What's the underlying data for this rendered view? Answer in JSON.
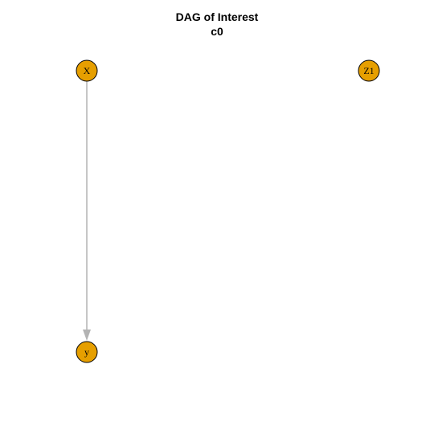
{
  "title": "DAG of Interest",
  "subtitle": "c0",
  "colors": {
    "node_fill": "#E69F00",
    "node_stroke": "#000000",
    "edge": "#B3B3B3",
    "label": "#000000"
  },
  "nodes": [
    {
      "id": "X",
      "label": "X"
    },
    {
      "id": "Z1",
      "label": "Z1"
    },
    {
      "id": "y",
      "label": "y"
    }
  ],
  "edges": [
    {
      "from": "X",
      "to": "y"
    }
  ]
}
